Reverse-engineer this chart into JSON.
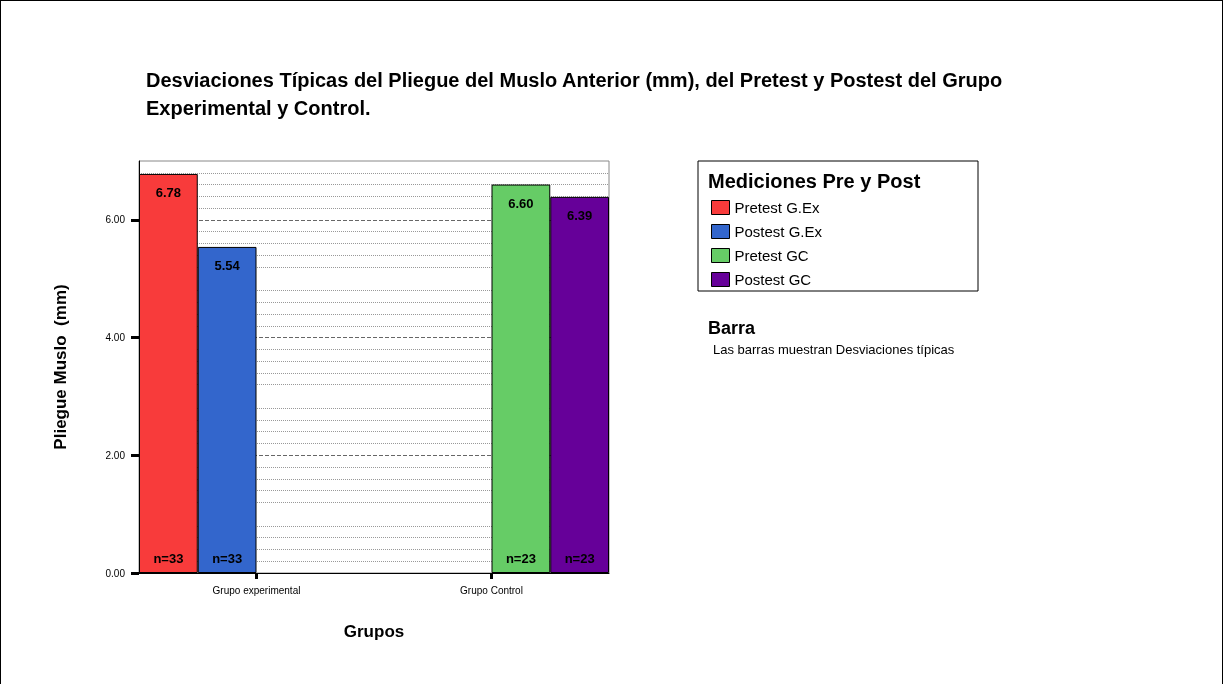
{
  "chart_data": {
    "type": "bar",
    "title": "Desviaciones Típicas del Pliegue del Muslo Anterior (mm), del Pretest y Postest del Grupo Experimental y Control.",
    "xlabel": "Grupos",
    "ylabel": "Pliegue Muslo  (mm)",
    "legend_title": "Mediciones Pre y Post",
    "categories": [
      "Grupo experimental",
      "Grupo Control"
    ],
    "series": [
      {
        "name": "Pretest G.Ex",
        "color": "#f83b3b",
        "values": [
          6.78,
          null
        ]
      },
      {
        "name": "Postest G.Ex",
        "color": "#3366cc",
        "values": [
          5.54,
          null
        ]
      },
      {
        "name": "Pretest GC",
        "color": "#66cc66",
        "values": [
          null,
          6.6
        ]
      },
      {
        "name": "Postest GC",
        "color": "#660099",
        "values": [
          null,
          6.39
        ]
      }
    ],
    "value_labels": [
      [
        "6.78",
        null
      ],
      [
        "5.54",
        null
      ],
      [
        null,
        "6.60"
      ],
      [
        null,
        "6.39"
      ]
    ],
    "ylim": [
      0,
      7
    ],
    "yticks": [
      {
        "value": 0,
        "label": "0.00"
      },
      {
        "value": 2,
        "label": "2.00"
      },
      {
        "value": 4,
        "label": "4.00"
      },
      {
        "value": 6,
        "label": "6.00"
      }
    ],
    "grid": "y",
    "legend": "top right",
    "annotations": [
      "n=33",
      "n=33",
      "n=23",
      "n=23",
      "Barra",
      "Las barras muestran Desviaciones típicas"
    ]
  }
}
